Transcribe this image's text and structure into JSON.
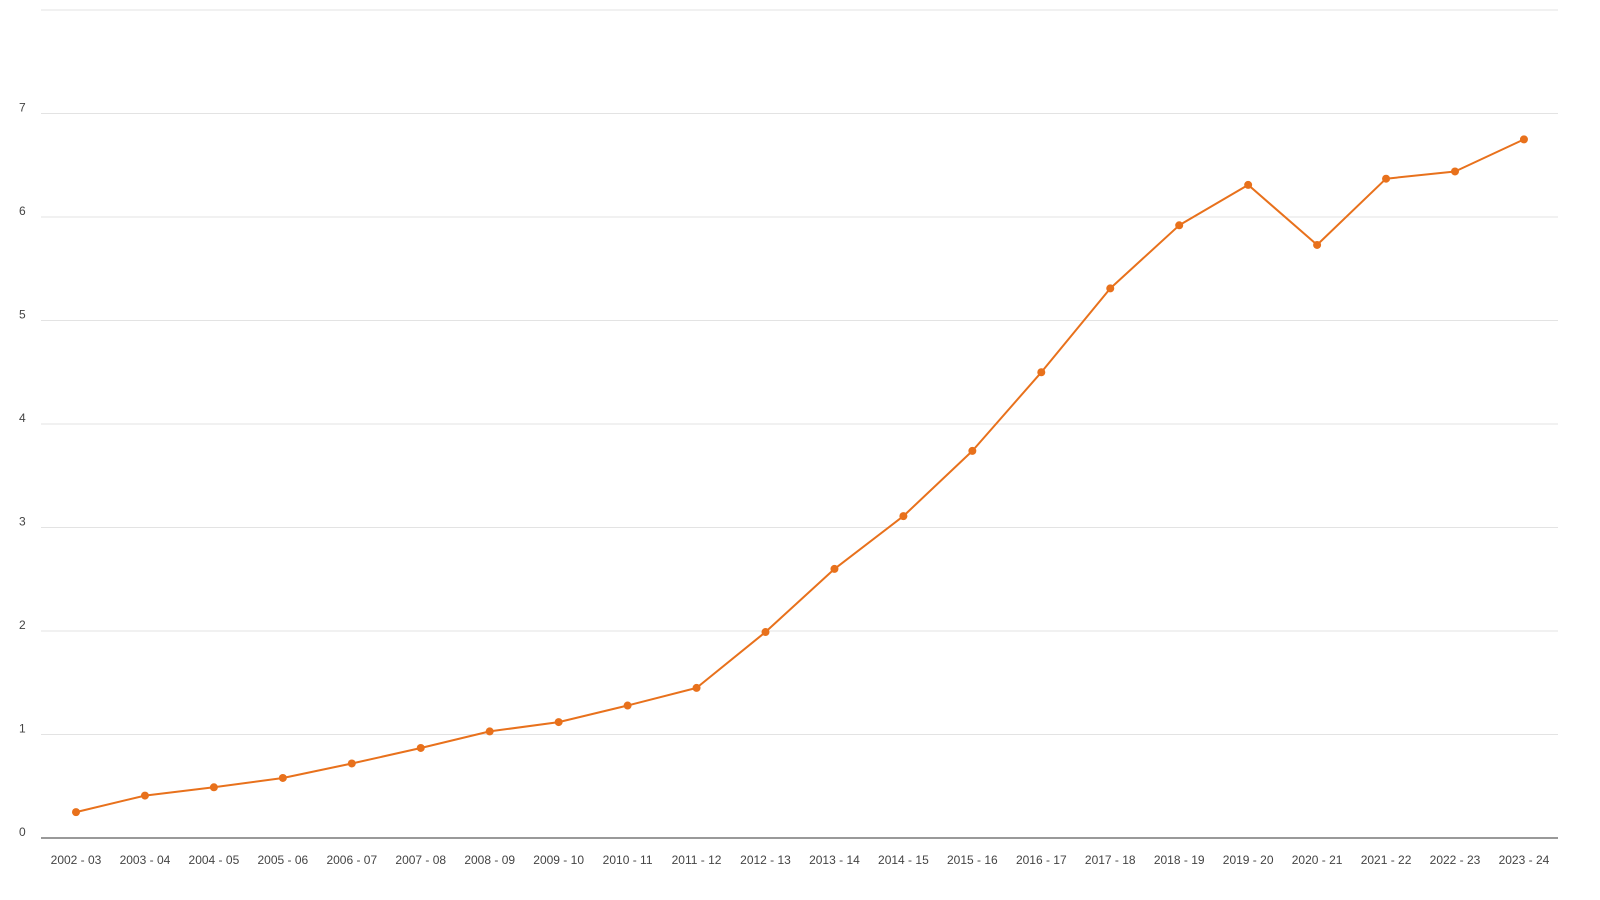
{
  "chart_data": {
    "type": "line",
    "title": "",
    "xlabel": "",
    "ylabel": "",
    "ylim": [
      0,
      8
    ],
    "grid": true,
    "legend": "none",
    "y_ticks": [
      "0",
      "1",
      "2",
      "3",
      "4",
      "5",
      "6",
      "7"
    ],
    "categories": [
      "2002 - 03",
      "2003 - 04",
      "2004 - 05",
      "2005 - 06",
      "2006 - 07",
      "2007 - 08",
      "2008 - 09",
      "2009 - 10",
      "2010 - 11",
      "2011 - 12",
      "2012 - 13",
      "2013 - 14",
      "2014 - 15",
      "2015 - 16",
      "2016 - 17",
      "2017 - 18",
      "2018 - 19",
      "2019 - 20",
      "2020 - 21",
      "2021 - 22",
      "2022 - 23",
      "2023 - 24"
    ],
    "series": [
      {
        "color": "#e8711c",
        "values": [
          0.25,
          0.41,
          0.49,
          0.58,
          0.72,
          0.87,
          1.03,
          1.12,
          1.28,
          1.45,
          1.99,
          2.6,
          3.11,
          3.74,
          4.5,
          5.31,
          5.92,
          6.31,
          5.73,
          6.37,
          6.44,
          6.75
        ]
      }
    ]
  }
}
